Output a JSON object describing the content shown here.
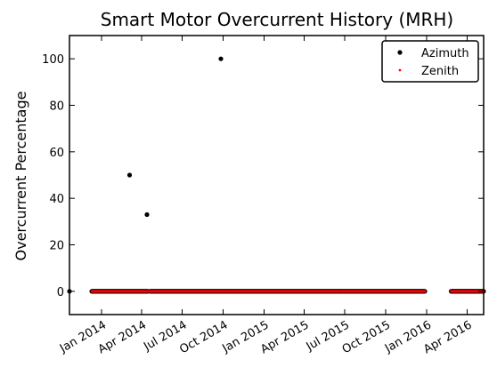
{
  "chart_data": {
    "type": "scatter",
    "title": "Smart Motor Overcurrent History (MRH)",
    "xlabel": "",
    "ylabel": "Overcurrent Percentage",
    "xlim": [
      "2013-10-21",
      "2016-05-08"
    ],
    "ylim": [
      -10,
      110
    ],
    "x_ticks": [
      "Jan 2014",
      "Apr 2014",
      "Jul 2014",
      "Oct 2014",
      "Jan 2015",
      "Apr 2015",
      "Jul 2015",
      "Oct 2015",
      "Jan 2016",
      "Apr 2016"
    ],
    "x_tick_dates": [
      "2014-01-01",
      "2014-04-01",
      "2014-07-01",
      "2014-10-01",
      "2015-01-01",
      "2015-04-01",
      "2015-07-01",
      "2015-10-01",
      "2016-01-01",
      "2016-04-01"
    ],
    "y_ticks": [
      0,
      20,
      40,
      60,
      80,
      100
    ],
    "grid": false,
    "legend_position": "top-right",
    "series": [
      {
        "name": "Azimuth",
        "color": "#000000",
        "marker": "dot",
        "points": [
          {
            "x": "2013-10-21",
            "y": 0
          },
          {
            "x": "2014-03-05",
            "y": 50
          },
          {
            "x": "2014-04-13",
            "y": 33
          },
          {
            "x": "2014-09-26",
            "y": 100
          }
        ],
        "constant_segments": [
          {
            "start": "2013-12-10",
            "end": "2014-04-15",
            "y": 0
          },
          {
            "start": "2014-04-20",
            "end": "2015-12-28",
            "y": 0
          },
          {
            "start": "2016-02-25",
            "end": "2016-05-08",
            "y": 0
          }
        ]
      },
      {
        "name": "Zenith",
        "color": "#ff0000",
        "marker": "small-dot",
        "points": [],
        "constant_segments": [
          {
            "start": "2013-12-10",
            "end": "2014-04-15",
            "y": 0
          },
          {
            "start": "2014-04-20",
            "end": "2015-12-28",
            "y": 0
          },
          {
            "start": "2016-02-25",
            "end": "2016-05-08",
            "y": 0
          }
        ]
      }
    ]
  }
}
